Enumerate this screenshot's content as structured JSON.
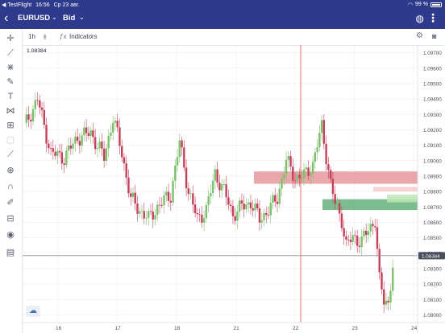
{
  "status_bar": {
    "carrier": "◀ TestFlight",
    "time": "16:56",
    "date": "Ср 23 авг.",
    "battery": "99 %"
  },
  "header": {
    "back_icon": "chevron-left-icon",
    "symbol": "EURUSD",
    "price_type": "Bid",
    "globe_icon": "globe-icon",
    "more_icon": "more-vertical-icon"
  },
  "toolbar": {
    "interval": "1h",
    "chart_type_icon": "candles-icon",
    "indicators_label": "Indicators",
    "settings_icon": "gear-icon",
    "screenshot_icon": "camera-icon"
  },
  "tools": [
    "crosshair-icon",
    "trendline-icon",
    "fibonacci-icon",
    "brush-icon",
    "text-icon",
    "pattern-icon",
    "projection-icon",
    "ruler-icon",
    "zoom-icon",
    "magnet-icon",
    "lock-drawing-icon",
    "lock-icon",
    "eye-icon",
    "trash-icon"
  ],
  "colors": {
    "brand": "#2e3a8c",
    "bull": "#7cc06c",
    "bear": "#c3405a",
    "supply_zone": "#e38a90",
    "demand_zone": "#52a66a",
    "current_price_line": "#8c8f99",
    "vertical_marker": "#d9534f"
  },
  "chart_data": {
    "type": "candlestick",
    "symbol": "EURUSD",
    "timeframe": "1h",
    "x_tick_labels": [
      "16",
      "17",
      "18",
      "21",
      "22",
      "23",
      "24"
    ],
    "y_tick_labels": [
      "1.09700",
      "1.09600",
      "1.09500",
      "1.09400",
      "1.09300",
      "1.09200",
      "1.09100",
      "1.09000",
      "1.08900",
      "1.08800",
      "1.08700",
      "1.08600",
      "1.08500",
      "1.08400",
      "1.08300",
      "1.08200",
      "1.08100",
      "1.08000"
    ],
    "ylim": [
      1.0795,
      1.0975
    ],
    "current_price": "1.08384",
    "top_left_label": "1.08384",
    "zones": [
      {
        "type": "supply",
        "from": 1.0885,
        "to": 1.0893
      },
      {
        "type": "demand",
        "from": 1.0868,
        "to": 1.0875
      }
    ],
    "candles_count_estimate": 140,
    "grid": true
  }
}
